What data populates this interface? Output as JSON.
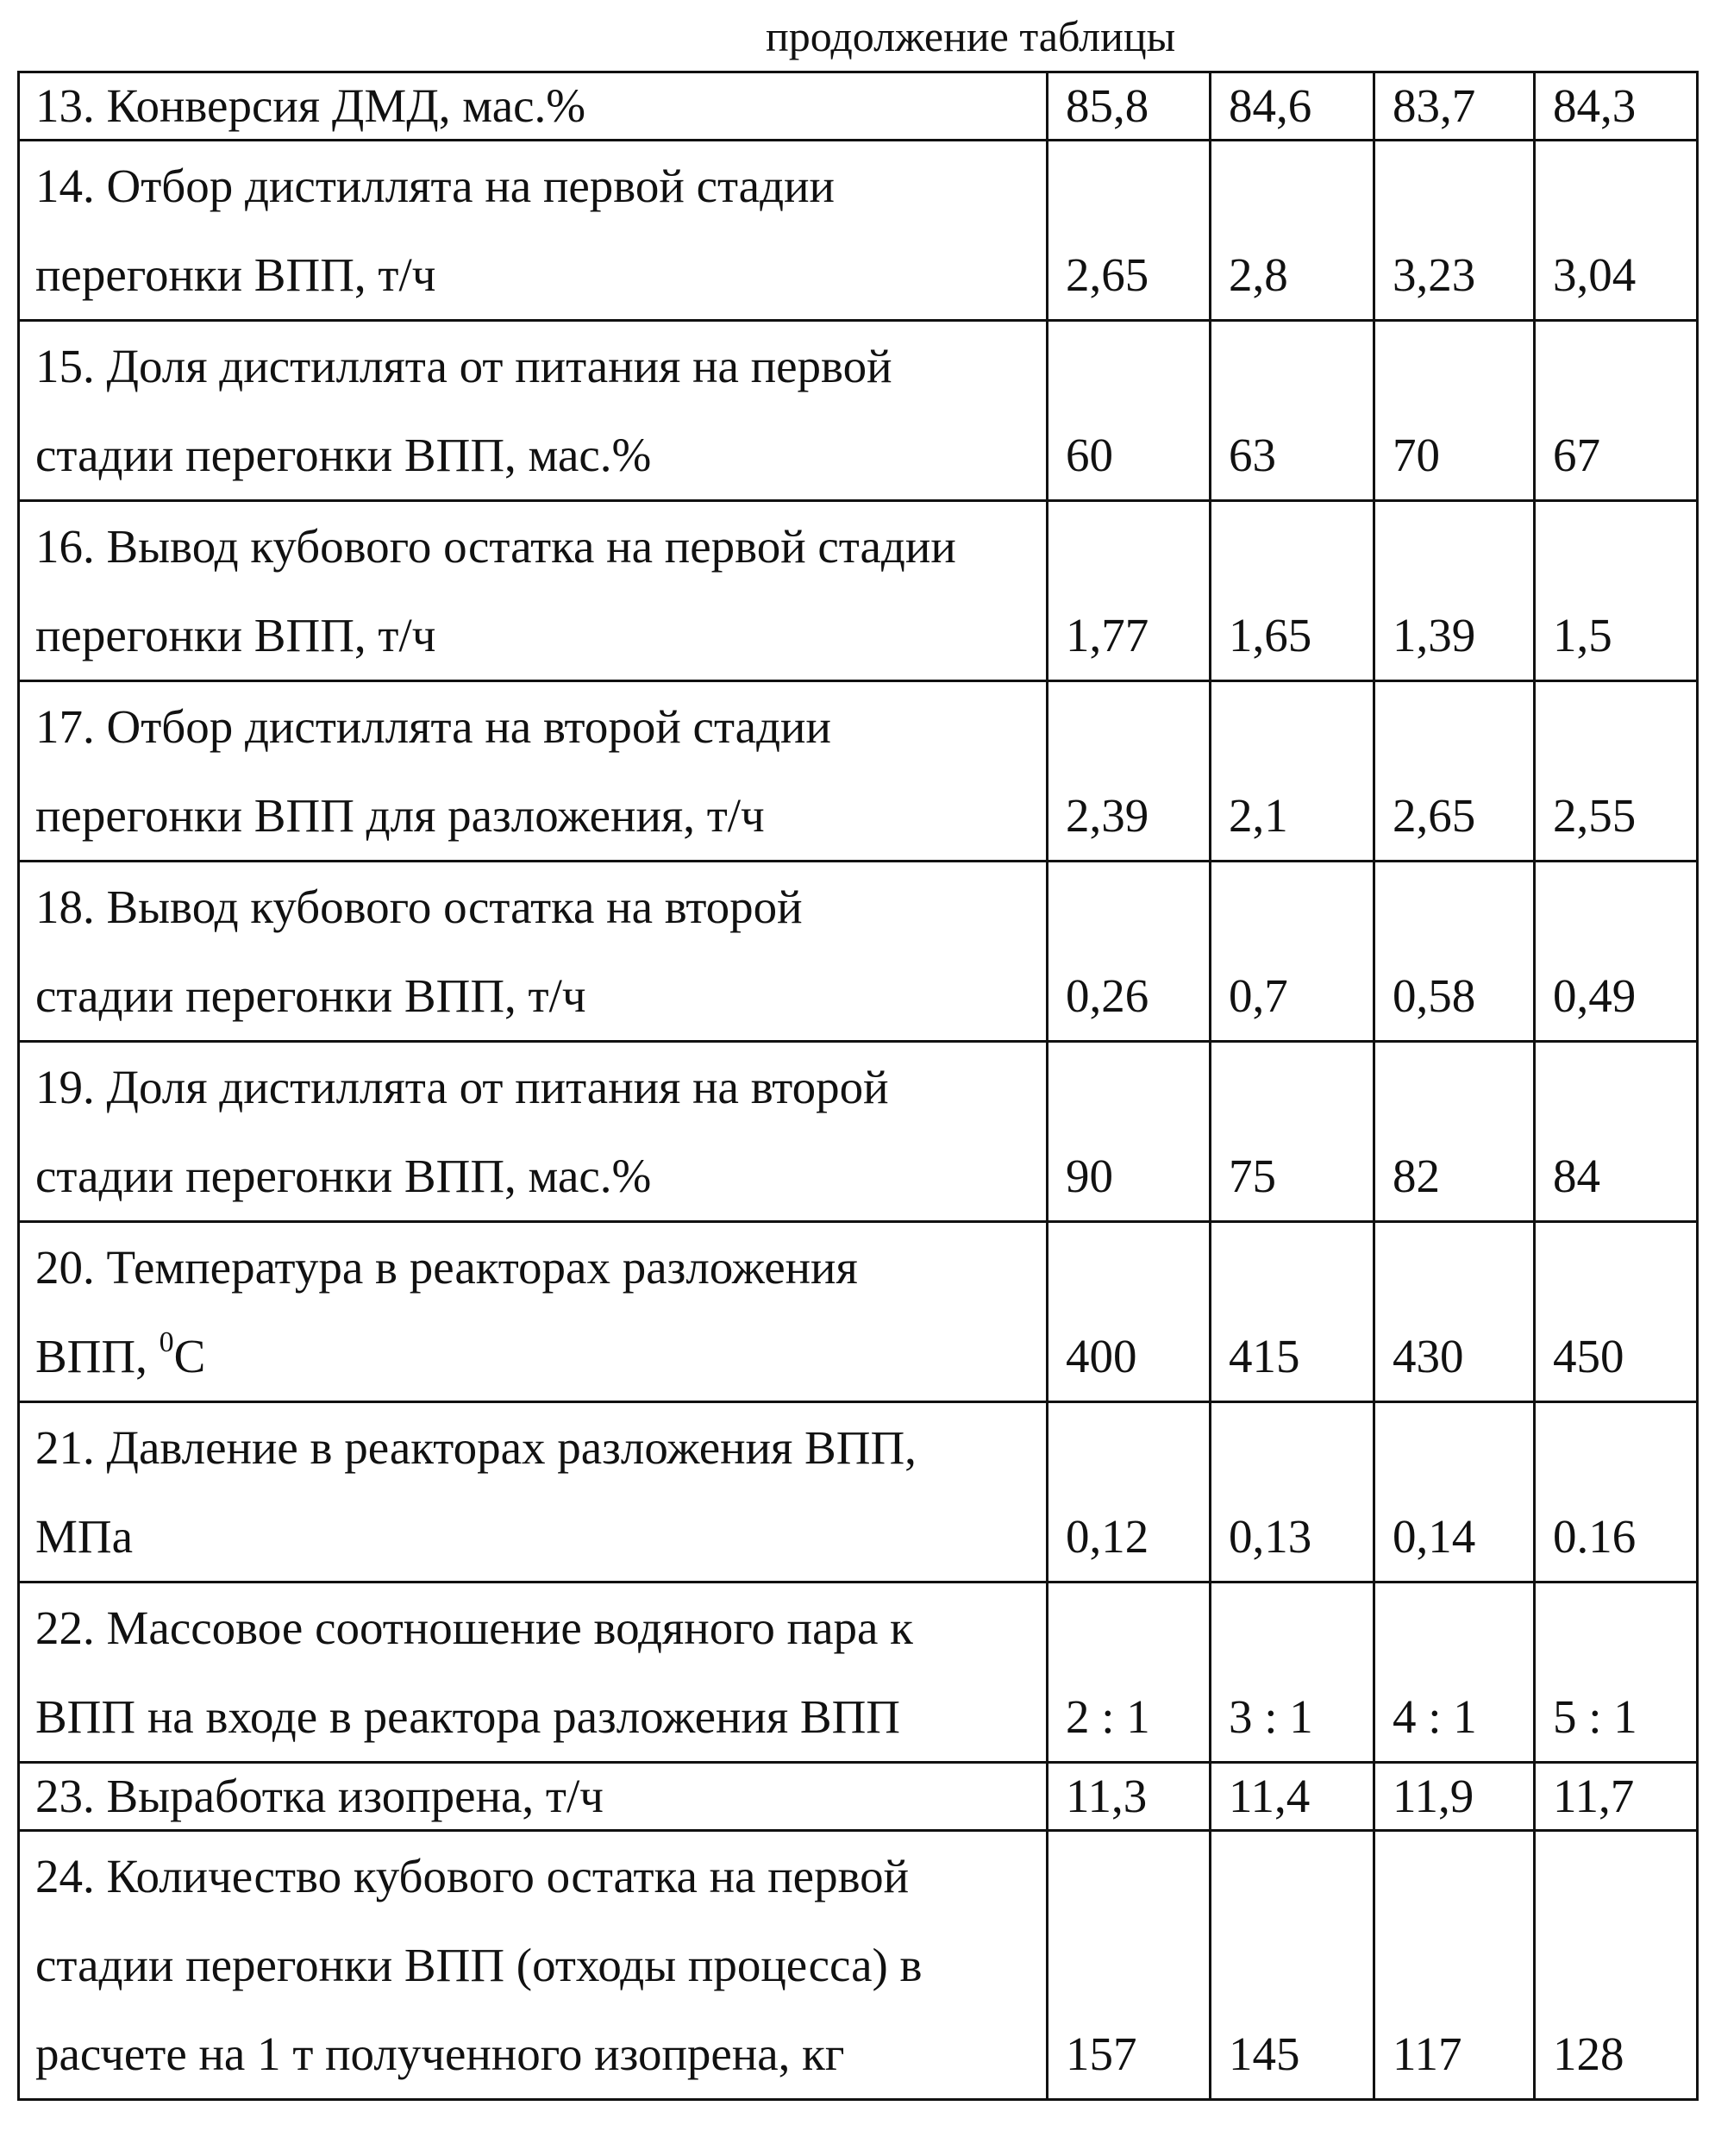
{
  "caption": "продолжение таблицы",
  "rows": [
    {
      "label": "13. Конверсия ДМД, мас.%",
      "values": [
        "85,8",
        "84,6",
        "83,7",
        "84,3"
      ]
    },
    {
      "label": "14. Отбор дистиллята на первой стадии\nперегонки ВПП, т/ч",
      "values": [
        "2,65",
        "2,8",
        "3,23",
        "3,04"
      ]
    },
    {
      "label": "15.  Доля дистиллята от питания на первой\nстадии перегонки ВПП,  мас.%",
      "values": [
        "60",
        "63",
        "70",
        "67"
      ]
    },
    {
      "label": "16. Вывод кубового остатка на первой стадии\nперегонки ВПП, т/ч",
      "values": [
        "1,77",
        "1,65",
        "1,39",
        "1,5"
      ]
    },
    {
      "label": "17. Отбор дистиллята на второй стадии\nперегонки ВПП для разложения, т/ч",
      "values": [
        "2,39",
        "2,1",
        "2,65",
        "2,55"
      ]
    },
    {
      "label": "18. Вывод кубового остатка  на второй\nстадии перегонки ВПП, т/ч",
      "values": [
        "0,26",
        "0,7",
        "0,58",
        "0,49"
      ]
    },
    {
      "label": "19. Доля дистиллята от питания на второй\nстадии перегонки ВПП,  мас.%",
      "values": [
        "90",
        "75",
        "82",
        "84"
      ]
    },
    {
      "label_main": "20. Температура в реакторах разложения\nВПП, ",
      "label_sup": "0",
      "label_tail": "С",
      "values": [
        "400",
        "415",
        "430",
        "450"
      ]
    },
    {
      "label": "21. Давление в реакторах разложения ВПП,\nМПа",
      "values": [
        "0,12",
        "0,13",
        "0,14",
        "0.16"
      ]
    },
    {
      "label": "22.  Массовое соотношение водяного пара к\nВПП на входе в реактора разложения ВПП",
      "values": [
        "2 : 1",
        "3 : 1",
        "4 : 1",
        "5 : 1"
      ]
    },
    {
      "label": "23. Выработка изопрена, т/ч",
      "values": [
        "11,3",
        "11,4",
        "11,9",
        "11,7"
      ]
    },
    {
      "label": "24. Количество кубового остатка на первой\nстадии перегонки ВПП (отходы процесса) в\nрасчете на 1 т полученного изопрена, кг",
      "values": [
        "157",
        "145",
        "117",
        "128"
      ]
    }
  ]
}
